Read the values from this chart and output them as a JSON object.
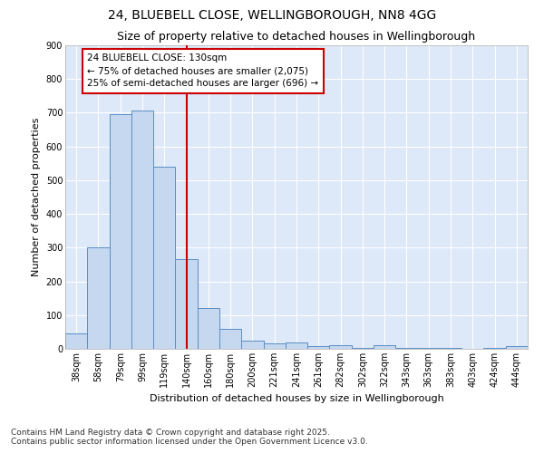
{
  "title_line1": "24, BLUEBELL CLOSE, WELLINGBOROUGH, NN8 4GG",
  "title_line2": "Size of property relative to detached houses in Wellingborough",
  "xlabel": "Distribution of detached houses by size in Wellingborough",
  "ylabel": "Number of detached properties",
  "categories": [
    "38sqm",
    "58sqm",
    "79sqm",
    "99sqm",
    "119sqm",
    "140sqm",
    "160sqm",
    "180sqm",
    "200sqm",
    "221sqm",
    "241sqm",
    "261sqm",
    "282sqm",
    "302sqm",
    "322sqm",
    "343sqm",
    "363sqm",
    "383sqm",
    "403sqm",
    "424sqm",
    "444sqm"
  ],
  "values": [
    45,
    300,
    695,
    706,
    540,
    265,
    122,
    58,
    25,
    15,
    18,
    7,
    10,
    3,
    10,
    3,
    3,
    3,
    1,
    3,
    8
  ],
  "bar_color": "#c5d8f0",
  "bar_edge_color": "#5b8ec4",
  "fig_background": "#ffffff",
  "plot_background": "#dde8f8",
  "grid_color": "#ffffff",
  "vline_color": "#cc0000",
  "vline_x": 5.0,
  "annotation_text": "24 BLUEBELL CLOSE: 130sqm\n← 75% of detached houses are smaller (2,075)\n25% of semi-detached houses are larger (696) →",
  "annotation_box_color": "#cc0000",
  "ylim": [
    0,
    900
  ],
  "yticks": [
    0,
    100,
    200,
    300,
    400,
    500,
    600,
    700,
    800,
    900
  ],
  "footer_line1": "Contains HM Land Registry data © Crown copyright and database right 2025.",
  "footer_line2": "Contains public sector information licensed under the Open Government Licence v3.0.",
  "title1_fontsize": 10,
  "title2_fontsize": 9,
  "axis_label_fontsize": 8,
  "tick_fontsize": 7,
  "annotation_fontsize": 7.5,
  "footer_fontsize": 6.5
}
